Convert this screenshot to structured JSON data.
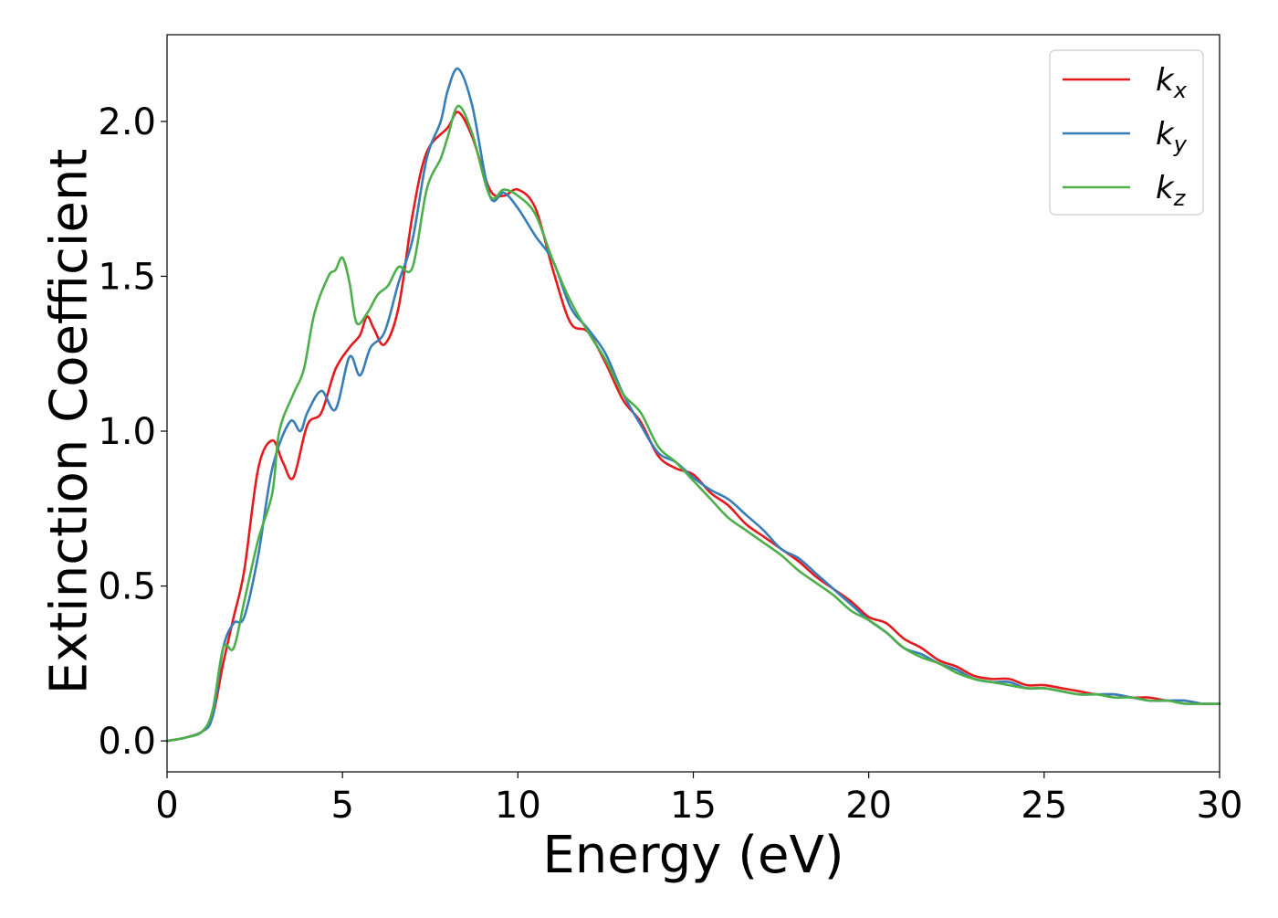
{
  "chart_data": {
    "type": "line",
    "title": "",
    "xlabel": "Energy (eV)",
    "ylabel": "Extinction Coefficient",
    "xlim": [
      0,
      30
    ],
    "ylim": [
      -0.1,
      2.28
    ],
    "xticks": [
      0,
      5,
      10,
      15,
      20,
      25,
      30
    ],
    "xtick_labels": [
      "0",
      "5",
      "10",
      "15",
      "20",
      "25",
      "30"
    ],
    "yticks": [
      0.0,
      0.5,
      1.0,
      1.5,
      2.0
    ],
    "ytick_labels": [
      "0.0",
      "0.5",
      "1.0",
      "1.5",
      "2.0"
    ],
    "grid": false,
    "legend_position": "top-right",
    "series": [
      {
        "name": "k_x",
        "label_main": "k",
        "label_sub": "x",
        "color": "#e41a1c",
        "x": [
          0,
          0.5,
          1.0,
          1.3,
          1.6,
          1.9,
          2.2,
          2.6,
          3.0,
          3.3,
          3.6,
          4.0,
          4.4,
          4.8,
          5.2,
          5.5,
          5.7,
          5.9,
          6.2,
          6.6,
          7.0,
          7.4,
          8.0,
          8.3,
          8.7,
          9.2,
          9.6,
          10.0,
          10.5,
          11.0,
          11.5,
          12.0,
          12.5,
          13.0,
          13.5,
          14.0,
          14.5,
          15.0,
          15.5,
          16.0,
          16.5,
          17.0,
          17.5,
          18.0,
          18.5,
          19.0,
          19.5,
          20.0,
          20.5,
          21.0,
          21.5,
          22.0,
          22.5,
          23.0,
          23.5,
          24.0,
          24.5,
          25.0,
          25.5,
          26.0,
          26.5,
          27.0,
          27.5,
          28.0,
          28.5,
          29.0,
          29.5,
          30.0
        ],
        "y": [
          0.0,
          0.01,
          0.03,
          0.08,
          0.25,
          0.4,
          0.55,
          0.88,
          0.97,
          0.9,
          0.85,
          1.02,
          1.06,
          1.2,
          1.27,
          1.31,
          1.37,
          1.33,
          1.28,
          1.4,
          1.7,
          1.9,
          1.98,
          2.03,
          1.95,
          1.78,
          1.76,
          1.78,
          1.72,
          1.52,
          1.35,
          1.32,
          1.22,
          1.1,
          1.03,
          0.92,
          0.88,
          0.86,
          0.8,
          0.76,
          0.7,
          0.66,
          0.62,
          0.58,
          0.53,
          0.49,
          0.45,
          0.4,
          0.38,
          0.33,
          0.3,
          0.26,
          0.24,
          0.21,
          0.2,
          0.2,
          0.18,
          0.18,
          0.17,
          0.16,
          0.15,
          0.15,
          0.14,
          0.14,
          0.13,
          0.13,
          0.12,
          0.12
        ]
      },
      {
        "name": "k_y",
        "label_main": "k",
        "label_sub": "y",
        "color": "#377eb8",
        "x": [
          0,
          0.5,
          1.0,
          1.3,
          1.6,
          1.9,
          2.2,
          2.6,
          3.0,
          3.5,
          3.8,
          4.0,
          4.4,
          4.8,
          5.2,
          5.5,
          5.8,
          6.2,
          6.6,
          7.0,
          7.4,
          7.8,
          8.0,
          8.3,
          8.7,
          9.2,
          9.6,
          10.0,
          10.5,
          11.0,
          11.5,
          12.0,
          12.5,
          13.0,
          13.5,
          14.0,
          14.5,
          15.0,
          15.5,
          16.0,
          16.5,
          17.0,
          17.5,
          18.0,
          18.5,
          19.0,
          19.5,
          20.0,
          20.5,
          21.0,
          21.5,
          22.0,
          22.5,
          23.0,
          23.5,
          24.0,
          24.5,
          25.0,
          25.5,
          26.0,
          26.5,
          27.0,
          27.5,
          28.0,
          28.5,
          29.0,
          29.5,
          30.0
        ],
        "y": [
          0.0,
          0.01,
          0.03,
          0.08,
          0.3,
          0.38,
          0.4,
          0.6,
          0.88,
          1.03,
          1.0,
          1.06,
          1.13,
          1.07,
          1.24,
          1.18,
          1.27,
          1.32,
          1.48,
          1.62,
          1.88,
          2.0,
          2.1,
          2.17,
          2.05,
          1.76,
          1.77,
          1.72,
          1.63,
          1.55,
          1.4,
          1.33,
          1.25,
          1.12,
          1.02,
          0.93,
          0.9,
          0.85,
          0.81,
          0.78,
          0.73,
          0.68,
          0.62,
          0.59,
          0.54,
          0.49,
          0.44,
          0.39,
          0.35,
          0.3,
          0.28,
          0.25,
          0.23,
          0.2,
          0.19,
          0.19,
          0.17,
          0.17,
          0.16,
          0.15,
          0.15,
          0.15,
          0.14,
          0.13,
          0.13,
          0.13,
          0.12,
          0.12
        ]
      },
      {
        "name": "k_z",
        "label_main": "k",
        "label_sub": "z",
        "color": "#4daf4a",
        "x": [
          0,
          0.5,
          1.0,
          1.3,
          1.6,
          1.9,
          2.2,
          2.6,
          3.0,
          3.2,
          3.6,
          3.9,
          4.2,
          4.6,
          4.8,
          5.0,
          5.2,
          5.4,
          5.7,
          6.0,
          6.3,
          6.6,
          7.0,
          7.4,
          7.8,
          8.0,
          8.3,
          8.7,
          9.2,
          9.6,
          10.0,
          10.5,
          11.0,
          11.5,
          12.0,
          12.5,
          13.0,
          13.5,
          14.0,
          14.5,
          15.0,
          15.5,
          16.0,
          16.5,
          17.0,
          17.5,
          18.0,
          18.5,
          19.0,
          19.5,
          20.0,
          20.5,
          21.0,
          21.5,
          22.0,
          22.5,
          23.0,
          23.5,
          24.0,
          24.5,
          25.0,
          25.5,
          26.0,
          26.5,
          27.0,
          27.5,
          28.0,
          28.5,
          29.0,
          29.5,
          30.0
        ],
        "y": [
          0.0,
          0.01,
          0.03,
          0.1,
          0.3,
          0.3,
          0.45,
          0.65,
          0.8,
          1.0,
          1.12,
          1.2,
          1.38,
          1.5,
          1.52,
          1.56,
          1.48,
          1.35,
          1.38,
          1.44,
          1.47,
          1.53,
          1.53,
          1.78,
          1.88,
          1.95,
          2.05,
          1.96,
          1.76,
          1.78,
          1.76,
          1.7,
          1.55,
          1.42,
          1.32,
          1.23,
          1.12,
          1.06,
          0.95,
          0.9,
          0.84,
          0.78,
          0.72,
          0.68,
          0.64,
          0.6,
          0.55,
          0.51,
          0.47,
          0.42,
          0.39,
          0.35,
          0.3,
          0.27,
          0.25,
          0.22,
          0.2,
          0.19,
          0.18,
          0.17,
          0.17,
          0.16,
          0.15,
          0.15,
          0.14,
          0.14,
          0.13,
          0.13,
          0.12,
          0.12,
          0.12
        ]
      }
    ]
  }
}
